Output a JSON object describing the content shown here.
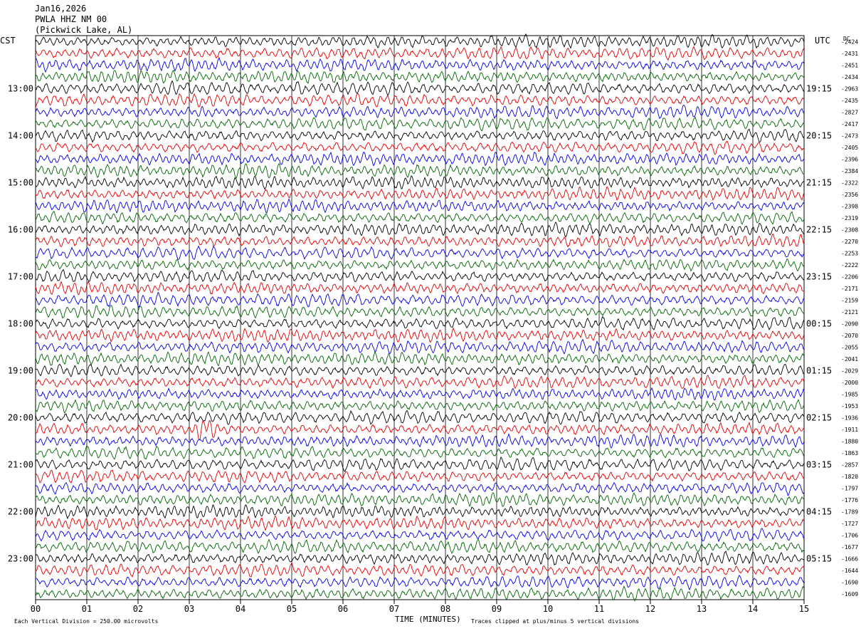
{
  "header": {
    "date": "Jan16,2026",
    "station": "PWLA HHZ NM 00",
    "location": "(Pickwick Lake, AL)"
  },
  "left_axis_label": "CST",
  "right_axis_label": "UTC",
  "dc_label": "DC",
  "chart_data": {
    "type": "line",
    "subtype": "helicorder",
    "xlabel": "TIME (MINUTES)",
    "x_ticks": [
      "00",
      "01",
      "02",
      "03",
      "04",
      "05",
      "06",
      "07",
      "08",
      "09",
      "10",
      "11",
      "12",
      "13",
      "14",
      "15"
    ],
    "xlim": [
      0,
      15
    ],
    "trace_minutes": 15,
    "trace_count": 48,
    "trace_colors": [
      "#000000",
      "#e00000",
      "#0000e0",
      "#006400"
    ],
    "left_time_labels": [
      "13:00",
      "14:00",
      "15:00",
      "16:00",
      "17:00",
      "18:00",
      "19:00",
      "20:00",
      "21:00",
      "22:00",
      "23:00"
    ],
    "right_time_labels": [
      "19:15",
      "20:15",
      "21:15",
      "22:15",
      "23:15",
      "00:15",
      "01:15",
      "02:15",
      "03:15",
      "04:15",
      "05:15"
    ],
    "hour_label_trace_indices": [
      4,
      8,
      12,
      16,
      20,
      24,
      28,
      32,
      36,
      40,
      44
    ],
    "dc_offsets": [
      -2424,
      -2431,
      -2451,
      -2434,
      -2963,
      -2435,
      -2827,
      -2417,
      -2473,
      -2405,
      -2396,
      -2384,
      -2322,
      -2356,
      -2398,
      -2319,
      -2308,
      -2270,
      -2253,
      -2222,
      -2206,
      -2171,
      -2159,
      -2121,
      -2090,
      -2070,
      -2055,
      -2041,
      -2029,
      -2000,
      -1985,
      -1953,
      -1936,
      -1911,
      -1880,
      -1863,
      -2857,
      -1820,
      -1797,
      -1776,
      -1789,
      -1727,
      -1706,
      -1677,
      -1666,
      -1644,
      -1690,
      -1609
    ],
    "event_windows": [
      {
        "trace": 33,
        "start_min": 3.0,
        "end_min": 3.9,
        "amp_scale": 2.8
      },
      {
        "trace": 4,
        "start_min": 2.4,
        "end_min": 3.0,
        "amp_scale": 1.5
      },
      {
        "trace": 4,
        "start_min": 4.8,
        "end_min": 5.6,
        "amp_scale": 1.5
      },
      {
        "trace": 4,
        "start_min": 10.5,
        "end_min": 11.0,
        "amp_scale": 1.5
      },
      {
        "trace": 6,
        "start_min": 3.1,
        "end_min": 3.6,
        "amp_scale": 1.6
      },
      {
        "trace": 2,
        "start_min": 13.8,
        "end_min": 14.2,
        "amp_scale": 1.3
      },
      {
        "trace": 36,
        "start_min": 0.0,
        "end_min": 0.6,
        "amp_scale": 1.4
      }
    ],
    "scale_text": "Each Vertical Division =  250.00 microvolts",
    "clip_text": "Traces clipped at plus/minus 5 vertical divisions"
  }
}
